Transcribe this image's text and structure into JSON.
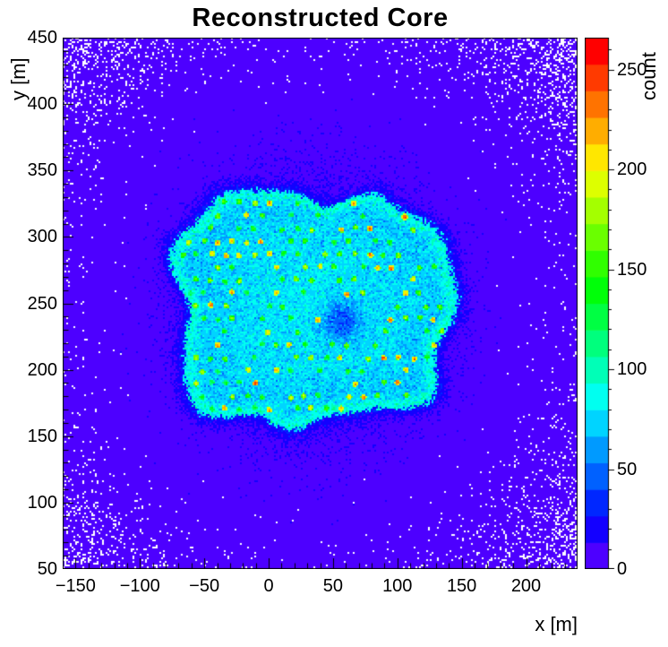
{
  "chart_data": {
    "type": "heatmap",
    "title": "Reconstructed Core",
    "xlabel": "x [m]",
    "ylabel": "y [m]",
    "zlabel": "count",
    "xlim": [
      -160,
      240
    ],
    "ylim": [
      50,
      450
    ],
    "zlim": [
      0,
      266
    ],
    "x_ticks": [
      -150,
      -100,
      -50,
      0,
      50,
      100,
      150,
      200
    ],
    "x_tick_labels": [
      "−150",
      "−100",
      "−50",
      "0",
      "50",
      "100",
      "150",
      "200"
    ],
    "y_ticks": [
      50,
      100,
      150,
      200,
      250,
      300,
      350,
      400,
      450
    ],
    "y_tick_labels": [
      "50",
      "100",
      "150",
      "200",
      "250",
      "300",
      "350",
      "400",
      "450"
    ],
    "z_ticks": [
      0,
      50,
      100,
      150,
      200,
      250
    ],
    "z_tick_labels": [
      "0",
      "50",
      "100",
      "150",
      "200",
      "250"
    ],
    "minor_tick_step": 10,
    "grid": false,
    "legend": "colorbar-right",
    "palette": {
      "scheme": "root-rainbow-discrete",
      "levels": 20,
      "hue_start": 258,
      "hue_end": 0,
      "empty_bin_color": "#ffffff"
    },
    "model": {
      "seed": 20240613,
      "background_noise": {
        "center": [
          33,
          247
        ],
        "peak_mean_count": 16,
        "sigma_m": 150,
        "floor_count": 0.6
      },
      "array_footprint": {
        "shape": "rounded-square",
        "center": [
          33,
          247
        ],
        "half_width_m": 104,
        "half_height_m": 84,
        "plateau_count": 62,
        "rim_extra_count": 26,
        "halo_count": 20
      },
      "central_dip": {
        "center": [
          57,
          236
        ],
        "radius_m": 14,
        "depth_count": 38
      },
      "detector_grid": {
        "pattern": "hex",
        "spacing_m": 11.2,
        "row_spacing_m": 9.7,
        "fill_fraction": 0.62,
        "count_range": [
          125,
          250
        ],
        "hot_spot_chance": 0.07
      }
    }
  }
}
